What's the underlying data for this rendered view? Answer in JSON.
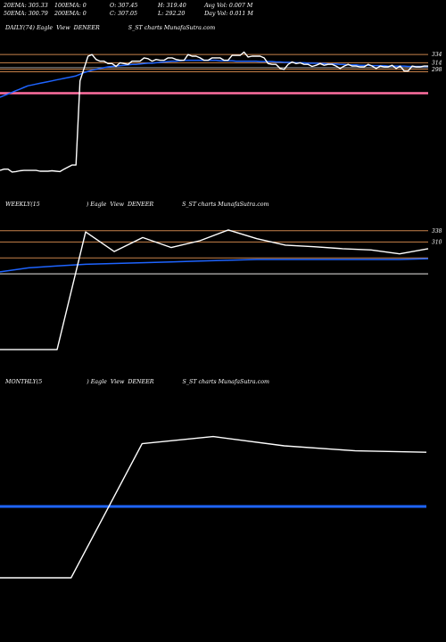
{
  "header": {
    "row1": [
      "20EMA: 305.33",
      "100EMA: 0",
      "O: 307.45",
      "H: 319.40",
      "Avg Vol: 0.007 M"
    ],
    "row2": [
      "50EMA: 300.79",
      "200EMA: 0",
      "C: 307.05",
      "L: 292.20",
      "Day Vol: 0.011 M"
    ]
  },
  "panels": {
    "daily_title": "DAILY(74) Eagle  View  DENEER                S_ST charts MunafaSutra.com",
    "weekly_title": "WEEKLY(15                          ) Eagle  View  DENEER                S_ST charts MunafaSutra.com",
    "monthly_title": "MONTHLY(5                         ) Eagle  View  DENEER                S_ST charts MunafaSutra.com"
  },
  "colors": {
    "background": "#000000",
    "price": "#ffffff",
    "ema": "#1e64ff",
    "level": "#c8824a",
    "support": "#ff6fa0",
    "grey": "#9a9a9a"
  },
  "chart_data": [
    {
      "type": "line",
      "name": "daily",
      "y_labels": [
        "334",
        "314",
        "298"
      ],
      "levels": [
        334,
        314,
        298,
        292
      ],
      "support": 240,
      "grey_level": 302,
      "price": [
        52,
        55,
        55,
        48,
        49,
        51,
        52,
        52,
        52,
        52,
        50,
        50,
        50,
        51,
        50,
        49,
        55,
        60,
        65,
        65,
        270,
        300,
        330,
        334,
        322,
        318,
        318,
        312,
        312,
        305,
        314,
        312,
        310,
        318,
        318,
        318,
        326,
        324,
        318,
        322,
        320,
        320,
        326,
        326,
        322,
        320,
        320,
        334,
        330,
        330,
        326,
        320,
        320,
        326,
        326,
        326,
        320,
        320,
        332,
        332,
        332,
        340,
        328,
        330,
        330,
        330,
        326,
        312,
        310,
        310,
        300,
        298,
        310,
        316,
        312,
        314,
        310,
        310,
        305,
        308,
        312,
        308,
        310,
        310,
        306,
        300,
        306,
        310,
        306,
        306,
        304,
        304,
        310,
        306,
        300,
        306,
        304,
        304,
        308,
        300,
        306,
        294,
        294,
        306,
        304,
        304,
        306,
        306
      ],
      "ema": [
        230,
        234,
        238,
        242,
        246,
        250,
        254,
        258,
        260,
        262,
        264,
        266,
        268,
        270,
        272,
        274,
        276,
        278,
        280,
        282,
        286,
        290,
        293,
        296,
        298,
        300,
        302,
        304,
        305,
        306,
        307,
        308,
        309,
        310,
        310,
        311,
        312,
        313,
        313,
        314,
        315,
        316,
        317,
        318,
        318,
        319,
        320,
        320,
        320,
        320,
        320,
        320,
        320,
        320,
        320,
        319,
        319,
        319,
        319,
        318,
        318,
        318,
        318,
        318,
        318,
        317,
        317,
        317,
        317,
        316,
        316,
        315,
        315,
        315,
        314,
        314,
        314,
        313,
        313,
        313,
        312,
        312,
        311,
        311,
        311,
        310,
        310,
        309,
        309,
        309,
        308,
        308,
        308,
        307,
        307,
        307,
        307,
        306,
        306,
        306,
        306,
        306,
        305,
        305,
        305,
        305,
        305,
        305
      ],
      "ylim": [
        0,
        380
      ]
    },
    {
      "type": "line",
      "name": "weekly",
      "y_labels": [
        "338",
        "310"
      ],
      "levels": [
        338,
        310,
        270,
        230
      ],
      "price": [
        40,
        40,
        40,
        335,
        286,
        321,
        296,
        313,
        340,
        318,
        302,
        298,
        293,
        290,
        280,
        293
      ],
      "ema": [
        235,
        245,
        250,
        254,
        256,
        258,
        260,
        262,
        264,
        266,
        266,
        266,
        266,
        266,
        266,
        268
      ],
      "ylim": [
        0,
        380
      ]
    },
    {
      "type": "line",
      "name": "monthly",
      "price": [
        40,
        40,
        228,
        238,
        225,
        218,
        216
      ],
      "ema": [
        140,
        140,
        140,
        140,
        140,
        140,
        140
      ],
      "ylim": [
        0,
        300
      ]
    }
  ]
}
